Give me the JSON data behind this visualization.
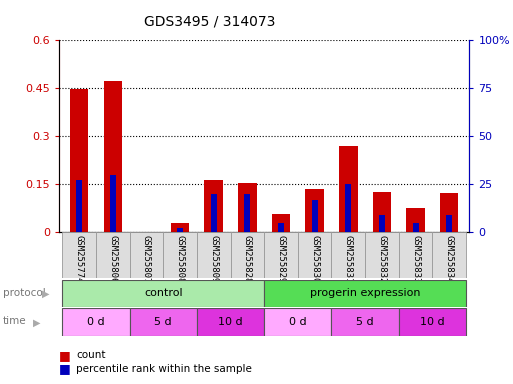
{
  "title": "GDS3495 / 314073",
  "samples": [
    "GSM255774",
    "GSM255806",
    "GSM255807",
    "GSM255808",
    "GSM255809",
    "GSM255828",
    "GSM255829",
    "GSM255830",
    "GSM255831",
    "GSM255832",
    "GSM255833",
    "GSM255834"
  ],
  "count_values": [
    0.449,
    0.473,
    0.0,
    0.028,
    0.165,
    0.155,
    0.058,
    0.135,
    0.27,
    0.125,
    0.075,
    0.123
  ],
  "percentile_values": [
    27,
    30,
    0,
    2,
    20,
    20,
    5,
    17,
    25,
    9,
    5,
    9
  ],
  "left_ylim": [
    0,
    0.6
  ],
  "right_ylim": [
    0,
    100
  ],
  "left_yticks": [
    0,
    0.15,
    0.3,
    0.45,
    0.6
  ],
  "left_yticklabels": [
    "0",
    "0.15",
    "0.3",
    "0.45",
    "0.6"
  ],
  "right_yticks": [
    0,
    25,
    50,
    75,
    100
  ],
  "right_yticklabels": [
    "0",
    "25",
    "50",
    "75",
    "100%"
  ],
  "bar_color_red": "#cc0000",
  "bar_color_blue": "#0000bb",
  "red_bar_width": 0.55,
  "blue_bar_width": 0.18,
  "protocol_control_color": "#aaeaaa",
  "protocol_progerin_color": "#55dd55",
  "time_colors": [
    "#ffaaff",
    "#ee66ee",
    "#dd33dd"
  ],
  "protocol_labels": [
    "control",
    "progerin expression"
  ],
  "time_labels": [
    "0 d",
    "5 d",
    "10 d"
  ],
  "protocol_ranges": [
    [
      0,
      6
    ],
    [
      6,
      12
    ]
  ],
  "time_ranges": [
    [
      0,
      2
    ],
    [
      2,
      4
    ],
    [
      4,
      6
    ],
    [
      6,
      8
    ],
    [
      8,
      10
    ],
    [
      10,
      12
    ]
  ],
  "time_color_indices": [
    0,
    1,
    2,
    0,
    1,
    2
  ],
  "grid_color": "#888888",
  "background_color": "#ffffff",
  "tick_color_left": "#cc0000",
  "tick_color_right": "#0000bb",
  "xticklabel_bg": "#dddddd",
  "border_color": "#999999"
}
